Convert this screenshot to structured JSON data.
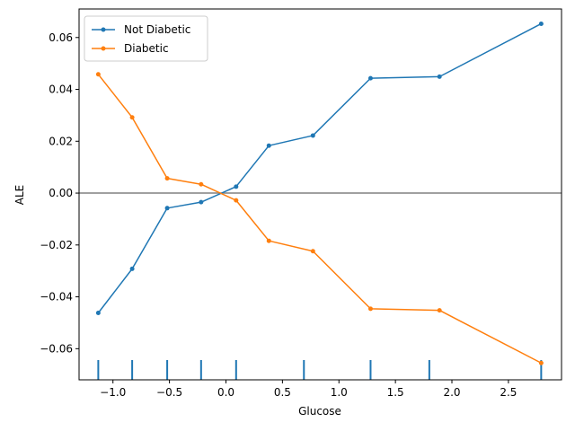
{
  "chart_data": {
    "type": "line",
    "xlabel": "Glucose",
    "ylabel": "ALE",
    "xlim": [
      -1.3,
      2.97
    ],
    "ylim": [
      -0.072,
      0.071
    ],
    "xticks": [
      -1.0,
      -0.5,
      0.0,
      0.5,
      1.0,
      1.5,
      2.0,
      2.5
    ],
    "xtick_labels": [
      "−1.0",
      "−0.5",
      "0.0",
      "0.5",
      "1.0",
      "1.5",
      "2.0",
      "2.5"
    ],
    "yticks": [
      -0.06,
      -0.04,
      -0.02,
      0.0,
      0.02,
      0.04,
      0.06
    ],
    "ytick_labels": [
      "−0.06",
      "−0.04",
      "−0.02",
      "0.00",
      "0.02",
      "0.04",
      "0.06"
    ],
    "reference_line_y": 0.0,
    "reference_line_color": "#808080",
    "legend_position": "upper-left",
    "x": [
      -1.13,
      -0.83,
      -0.52,
      -0.22,
      0.09,
      0.38,
      0.77,
      1.28,
      1.89,
      2.79
    ],
    "series": [
      {
        "name": "Not Diabetic",
        "color": "#1f77b4",
        "values": [
          -0.0462,
          -0.0292,
          -0.0058,
          -0.0035,
          0.0025,
          0.0183,
          0.0222,
          0.0443,
          0.0449,
          0.0653
        ]
      },
      {
        "name": "Diabetic",
        "color": "#ff7f0e",
        "values": [
          0.0458,
          0.0292,
          0.0057,
          0.0034,
          -0.0028,
          -0.0184,
          -0.0224,
          -0.0446,
          -0.0452,
          -0.0655
        ]
      }
    ],
    "rug": {
      "color": "#1f77b4",
      "x": [
        -1.13,
        -0.83,
        -0.52,
        -0.22,
        0.09,
        0.69,
        1.28,
        1.8,
        2.79
      ]
    }
  }
}
